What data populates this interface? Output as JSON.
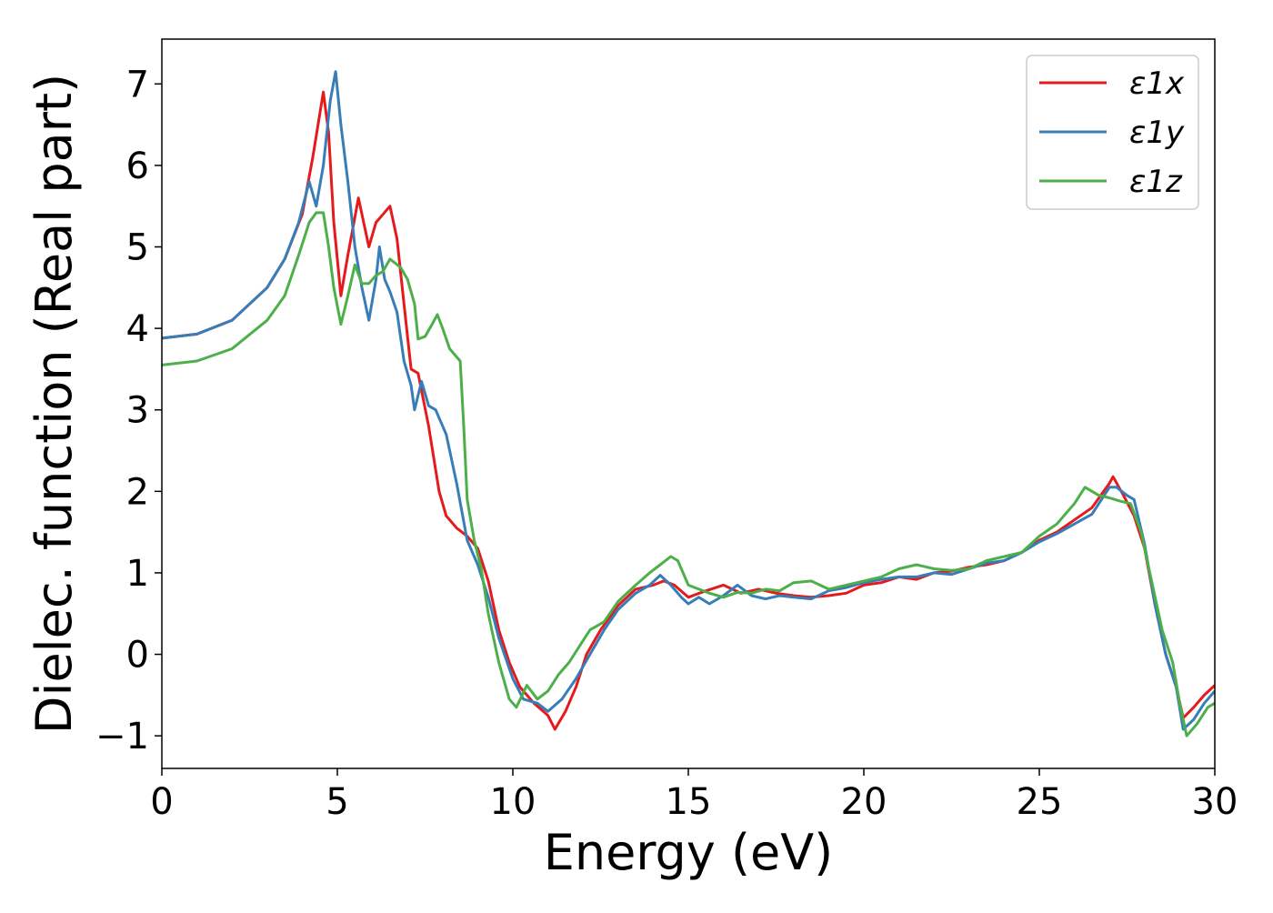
{
  "chart_data": {
    "type": "line",
    "title": "",
    "xlabel": "Energy (eV)",
    "ylabel": "Dielec. function (Real part)",
    "xlim": [
      0,
      30
    ],
    "ylim": [
      -1.4,
      7.55
    ],
    "xticks": [
      0,
      5,
      10,
      15,
      20,
      25,
      30
    ],
    "yticks": [
      -1,
      0,
      1,
      2,
      3,
      4,
      5,
      6,
      7
    ],
    "grid": false,
    "legend_position": "top-right",
    "series": [
      {
        "name": "ε1x",
        "color": "#e41a1c",
        "points": [
          [
            0,
            3.88
          ],
          [
            1,
            3.93
          ],
          [
            2,
            4.1
          ],
          [
            3,
            4.5
          ],
          [
            3.5,
            4.85
          ],
          [
            4,
            5.4
          ],
          [
            4.3,
            6.1
          ],
          [
            4.6,
            6.9
          ],
          [
            4.75,
            6.4
          ],
          [
            4.9,
            5.3
          ],
          [
            5.1,
            4.4
          ],
          [
            5.3,
            4.9
          ],
          [
            5.6,
            5.6
          ],
          [
            5.9,
            5.0
          ],
          [
            6.1,
            5.3
          ],
          [
            6.3,
            5.4
          ],
          [
            6.5,
            5.5
          ],
          [
            6.7,
            5.1
          ],
          [
            6.9,
            4.3
          ],
          [
            7.1,
            3.5
          ],
          [
            7.3,
            3.45
          ],
          [
            7.6,
            2.8
          ],
          [
            7.9,
            2.0
          ],
          [
            8.1,
            1.7
          ],
          [
            8.4,
            1.55
          ],
          [
            8.7,
            1.45
          ],
          [
            9.0,
            1.3
          ],
          [
            9.3,
            0.9
          ],
          [
            9.6,
            0.3
          ],
          [
            9.9,
            -0.1
          ],
          [
            10.2,
            -0.4
          ],
          [
            10.6,
            -0.6
          ],
          [
            11.0,
            -0.75
          ],
          [
            11.2,
            -0.92
          ],
          [
            11.5,
            -0.7
          ],
          [
            11.8,
            -0.4
          ],
          [
            12.1,
            0.0
          ],
          [
            12.5,
            0.3
          ],
          [
            13.0,
            0.6
          ],
          [
            13.5,
            0.8
          ],
          [
            14.0,
            0.85
          ],
          [
            14.3,
            0.9
          ],
          [
            14.6,
            0.85
          ],
          [
            15.0,
            0.7
          ],
          [
            15.5,
            0.78
          ],
          [
            16.0,
            0.85
          ],
          [
            16.5,
            0.75
          ],
          [
            17.0,
            0.8
          ],
          [
            17.5,
            0.75
          ],
          [
            18.0,
            0.72
          ],
          [
            18.5,
            0.7
          ],
          [
            19.0,
            0.72
          ],
          [
            19.5,
            0.75
          ],
          [
            20.0,
            0.85
          ],
          [
            20.5,
            0.88
          ],
          [
            21.0,
            0.95
          ],
          [
            21.5,
            0.92
          ],
          [
            22.0,
            1.0
          ],
          [
            22.5,
            1.02
          ],
          [
            23.0,
            1.07
          ],
          [
            23.5,
            1.1
          ],
          [
            24.0,
            1.15
          ],
          [
            24.5,
            1.25
          ],
          [
            25.0,
            1.4
          ],
          [
            25.5,
            1.5
          ],
          [
            26.0,
            1.65
          ],
          [
            26.5,
            1.8
          ],
          [
            27.0,
            2.1
          ],
          [
            27.1,
            2.18
          ],
          [
            27.4,
            1.95
          ],
          [
            27.7,
            1.7
          ],
          [
            28.0,
            1.3
          ],
          [
            28.3,
            0.6
          ],
          [
            28.6,
            0.0
          ],
          [
            28.9,
            -0.4
          ],
          [
            29.1,
            -0.78
          ],
          [
            29.4,
            -0.65
          ],
          [
            29.7,
            -0.5
          ],
          [
            30.0,
            -0.38
          ]
        ]
      },
      {
        "name": "ε1y",
        "color": "#377eb8",
        "points": [
          [
            0,
            3.88
          ],
          [
            1,
            3.93
          ],
          [
            2,
            4.1
          ],
          [
            3,
            4.5
          ],
          [
            3.5,
            4.85
          ],
          [
            3.9,
            5.3
          ],
          [
            4.2,
            5.8
          ],
          [
            4.4,
            5.5
          ],
          [
            4.6,
            6.0
          ],
          [
            4.8,
            6.8
          ],
          [
            4.95,
            7.15
          ],
          [
            5.1,
            6.5
          ],
          [
            5.3,
            5.8
          ],
          [
            5.5,
            5.0
          ],
          [
            5.7,
            4.5
          ],
          [
            5.9,
            4.1
          ],
          [
            6.1,
            4.6
          ],
          [
            6.2,
            5.0
          ],
          [
            6.35,
            4.6
          ],
          [
            6.5,
            4.45
          ],
          [
            6.7,
            4.2
          ],
          [
            6.9,
            3.6
          ],
          [
            7.1,
            3.3
          ],
          [
            7.2,
            3.0
          ],
          [
            7.4,
            3.35
          ],
          [
            7.6,
            3.05
          ],
          [
            7.8,
            3.0
          ],
          [
            8.1,
            2.7
          ],
          [
            8.4,
            2.1
          ],
          [
            8.7,
            1.4
          ],
          [
            9.0,
            1.1
          ],
          [
            9.3,
            0.7
          ],
          [
            9.6,
            0.2
          ],
          [
            10.0,
            -0.3
          ],
          [
            10.3,
            -0.55
          ],
          [
            10.7,
            -0.6
          ],
          [
            11.0,
            -0.7
          ],
          [
            11.4,
            -0.55
          ],
          [
            11.8,
            -0.3
          ],
          [
            12.2,
            0.0
          ],
          [
            12.6,
            0.3
          ],
          [
            13.0,
            0.55
          ],
          [
            13.5,
            0.75
          ],
          [
            13.9,
            0.85
          ],
          [
            14.2,
            0.97
          ],
          [
            14.5,
            0.85
          ],
          [
            14.8,
            0.7
          ],
          [
            15.0,
            0.62
          ],
          [
            15.3,
            0.7
          ],
          [
            15.6,
            0.62
          ],
          [
            16.0,
            0.72
          ],
          [
            16.4,
            0.85
          ],
          [
            16.8,
            0.72
          ],
          [
            17.2,
            0.68
          ],
          [
            17.6,
            0.72
          ],
          [
            18.0,
            0.7
          ],
          [
            18.5,
            0.68
          ],
          [
            19.0,
            0.78
          ],
          [
            19.5,
            0.82
          ],
          [
            20.0,
            0.88
          ],
          [
            20.5,
            0.92
          ],
          [
            21.0,
            0.95
          ],
          [
            21.5,
            0.95
          ],
          [
            22.0,
            1.0
          ],
          [
            22.5,
            0.98
          ],
          [
            23.0,
            1.05
          ],
          [
            23.5,
            1.12
          ],
          [
            24.0,
            1.15
          ],
          [
            24.5,
            1.25
          ],
          [
            25.0,
            1.38
          ],
          [
            25.5,
            1.48
          ],
          [
            26.0,
            1.6
          ],
          [
            26.5,
            1.72
          ],
          [
            27.0,
            2.05
          ],
          [
            27.2,
            2.05
          ],
          [
            27.5,
            1.95
          ],
          [
            27.7,
            1.9
          ],
          [
            28.0,
            1.35
          ],
          [
            28.3,
            0.6
          ],
          [
            28.6,
            0.0
          ],
          [
            28.9,
            -0.4
          ],
          [
            29.1,
            -0.92
          ],
          [
            29.4,
            -0.8
          ],
          [
            29.7,
            -0.6
          ],
          [
            30.0,
            -0.45
          ]
        ]
      },
      {
        "name": "ε1z",
        "color": "#4daf4a",
        "points": [
          [
            0,
            3.55
          ],
          [
            1,
            3.6
          ],
          [
            2,
            3.75
          ],
          [
            3,
            4.1
          ],
          [
            3.5,
            4.4
          ],
          [
            3.9,
            4.9
          ],
          [
            4.2,
            5.3
          ],
          [
            4.4,
            5.42
          ],
          [
            4.6,
            5.42
          ],
          [
            4.75,
            5.0
          ],
          [
            4.9,
            4.5
          ],
          [
            5.1,
            4.05
          ],
          [
            5.3,
            4.4
          ],
          [
            5.5,
            4.78
          ],
          [
            5.7,
            4.55
          ],
          [
            5.9,
            4.55
          ],
          [
            6.1,
            4.65
          ],
          [
            6.3,
            4.7
          ],
          [
            6.5,
            4.85
          ],
          [
            6.8,
            4.75
          ],
          [
            7.0,
            4.6
          ],
          [
            7.2,
            4.3
          ],
          [
            7.3,
            3.87
          ],
          [
            7.5,
            3.9
          ],
          [
            7.7,
            4.05
          ],
          [
            7.85,
            4.17
          ],
          [
            8.0,
            4.0
          ],
          [
            8.2,
            3.75
          ],
          [
            8.4,
            3.65
          ],
          [
            8.5,
            3.6
          ],
          [
            8.6,
            2.8
          ],
          [
            8.7,
            1.9
          ],
          [
            8.9,
            1.4
          ],
          [
            9.1,
            1.05
          ],
          [
            9.3,
            0.5
          ],
          [
            9.6,
            -0.1
          ],
          [
            9.9,
            -0.55
          ],
          [
            10.1,
            -0.65
          ],
          [
            10.4,
            -0.38
          ],
          [
            10.7,
            -0.55
          ],
          [
            11.0,
            -0.45
          ],
          [
            11.3,
            -0.25
          ],
          [
            11.6,
            -0.1
          ],
          [
            11.9,
            0.1
          ],
          [
            12.2,
            0.3
          ],
          [
            12.6,
            0.4
          ],
          [
            13.0,
            0.65
          ],
          [
            13.5,
            0.85
          ],
          [
            13.9,
            1.0
          ],
          [
            14.2,
            1.1
          ],
          [
            14.5,
            1.2
          ],
          [
            14.7,
            1.15
          ],
          [
            15.0,
            0.85
          ],
          [
            15.3,
            0.8
          ],
          [
            15.6,
            0.75
          ],
          [
            16.0,
            0.7
          ],
          [
            16.4,
            0.76
          ],
          [
            16.8,
            0.75
          ],
          [
            17.2,
            0.8
          ],
          [
            17.6,
            0.78
          ],
          [
            18.0,
            0.88
          ],
          [
            18.5,
            0.9
          ],
          [
            19.0,
            0.8
          ],
          [
            19.5,
            0.85
          ],
          [
            20.0,
            0.9
          ],
          [
            20.5,
            0.95
          ],
          [
            21.0,
            1.05
          ],
          [
            21.5,
            1.1
          ],
          [
            22.0,
            1.05
          ],
          [
            22.5,
            1.03
          ],
          [
            23.0,
            1.05
          ],
          [
            23.5,
            1.15
          ],
          [
            24.0,
            1.2
          ],
          [
            24.5,
            1.25
          ],
          [
            25.0,
            1.45
          ],
          [
            25.5,
            1.6
          ],
          [
            26.0,
            1.85
          ],
          [
            26.3,
            2.05
          ],
          [
            26.7,
            1.95
          ],
          [
            27.0,
            1.92
          ],
          [
            27.3,
            1.88
          ],
          [
            27.6,
            1.85
          ],
          [
            27.9,
            1.5
          ],
          [
            28.2,
            0.9
          ],
          [
            28.5,
            0.3
          ],
          [
            28.8,
            -0.1
          ],
          [
            29.0,
            -0.6
          ],
          [
            29.2,
            -1.0
          ],
          [
            29.5,
            -0.85
          ],
          [
            29.8,
            -0.65
          ],
          [
            30.0,
            -0.6
          ]
        ]
      }
    ]
  }
}
